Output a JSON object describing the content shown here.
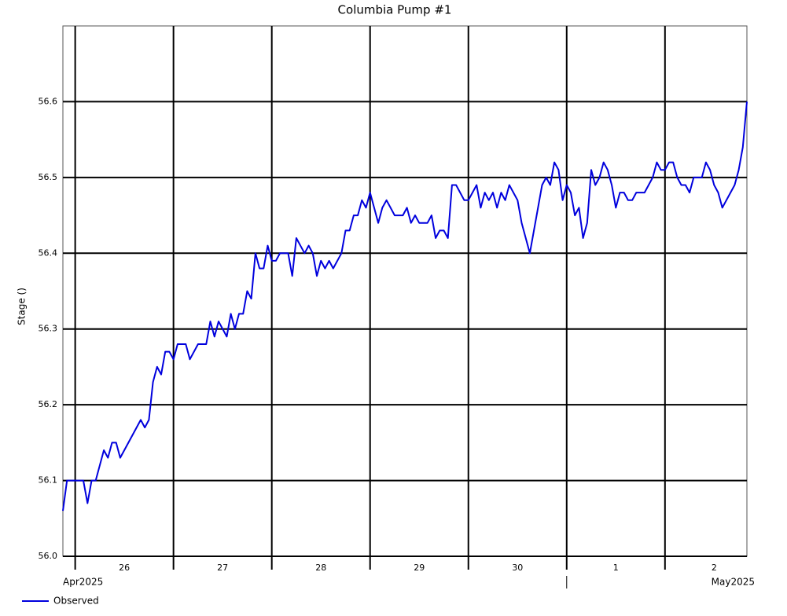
{
  "chart_data": {
    "type": "line",
    "title": "Columbia Pump #1",
    "y_label": "Stage ()",
    "x": [
      "2025-04-25T21:00",
      "2025-04-25T22:00",
      "2025-04-26T02:00",
      "2025-04-26T03:00",
      "2025-04-26T04:00",
      "2025-04-26T05:00",
      "2025-04-26T07:00",
      "2025-04-26T08:00",
      "2025-04-26T09:00",
      "2025-04-26T10:00",
      "2025-04-26T11:00",
      "2025-04-26T16:00",
      "2025-04-26T17:00",
      "2025-04-26T18:00",
      "2025-04-26T19:00",
      "2025-04-26T20:00",
      "2025-04-26T21:00",
      "2025-04-26T22:00",
      "2025-04-26T23:00",
      "2025-04-27T00:00",
      "2025-04-27T01:00",
      "2025-04-27T03:00",
      "2025-04-27T04:00",
      "2025-04-27T06:00",
      "2025-04-27T08:00",
      "2025-04-27T09:00",
      "2025-04-27T10:00",
      "2025-04-27T11:00",
      "2025-04-27T12:00",
      "2025-04-27T13:00",
      "2025-04-27T14:00",
      "2025-04-27T15:00",
      "2025-04-27T16:00",
      "2025-04-27T17:00",
      "2025-04-27T18:00",
      "2025-04-27T19:00",
      "2025-04-27T20:00",
      "2025-04-27T21:00",
      "2025-04-27T22:00",
      "2025-04-27T23:00",
      "2025-04-28T00:00",
      "2025-04-28T01:00",
      "2025-04-28T02:00",
      "2025-04-28T04:00",
      "2025-04-28T05:00",
      "2025-04-28T06:00",
      "2025-04-28T08:00",
      "2025-04-28T09:00",
      "2025-04-28T10:00",
      "2025-04-28T11:00",
      "2025-04-28T12:00",
      "2025-04-28T13:00",
      "2025-04-28T14:00",
      "2025-04-28T15:00",
      "2025-04-28T17:00",
      "2025-04-28T18:00",
      "2025-04-28T19:00",
      "2025-04-28T20:00",
      "2025-04-28T21:00",
      "2025-04-28T22:00",
      "2025-04-28T23:00",
      "2025-04-29T00:00",
      "2025-04-29T01:00",
      "2025-04-29T02:00",
      "2025-04-29T03:00",
      "2025-04-29T04:00",
      "2025-04-29T06:00",
      "2025-04-29T08:00",
      "2025-04-29T09:00",
      "2025-04-29T10:00",
      "2025-04-29T11:00",
      "2025-04-29T12:00",
      "2025-04-29T14:00",
      "2025-04-29T15:00",
      "2025-04-29T16:00",
      "2025-04-29T17:00",
      "2025-04-29T18:00",
      "2025-04-29T19:00",
      "2025-04-29T20:00",
      "2025-04-29T21:00",
      "2025-04-29T23:00",
      "2025-04-30T00:00",
      "2025-04-30T02:00",
      "2025-04-30T03:00",
      "2025-04-30T04:00",
      "2025-04-30T05:00",
      "2025-04-30T06:00",
      "2025-04-30T07:00",
      "2025-04-30T08:00",
      "2025-04-30T09:00",
      "2025-04-30T10:00",
      "2025-04-30T12:00",
      "2025-04-30T13:00",
      "2025-04-30T15:00",
      "2025-04-30T17:00",
      "2025-04-30T18:00",
      "2025-04-30T19:00",
      "2025-04-30T20:00",
      "2025-04-30T21:00",
      "2025-04-30T22:00",
      "2025-04-30T23:00",
      "2025-05-01T00:00",
      "2025-05-01T01:00",
      "2025-05-01T02:00",
      "2025-05-01T03:00",
      "2025-05-01T04:00",
      "2025-05-01T05:00",
      "2025-05-01T06:00",
      "2025-05-01T07:00",
      "2025-05-01T08:00",
      "2025-05-01T09:00",
      "2025-05-01T10:00",
      "2025-05-01T11:00",
      "2025-05-01T12:00",
      "2025-05-01T13:00",
      "2025-05-01T14:00",
      "2025-05-01T15:00",
      "2025-05-01T16:00",
      "2025-05-01T17:00",
      "2025-05-01T19:00",
      "2025-05-01T20:00",
      "2025-05-01T21:00",
      "2025-05-01T22:00",
      "2025-05-01T23:00",
      "2025-05-02T00:00",
      "2025-05-02T01:00",
      "2025-05-02T02:00",
      "2025-05-02T03:00",
      "2025-05-02T04:00",
      "2025-05-02T05:00",
      "2025-05-02T06:00",
      "2025-05-02T07:00",
      "2025-05-02T09:00",
      "2025-05-02T10:00",
      "2025-05-02T11:00",
      "2025-05-02T12:00",
      "2025-05-02T13:00",
      "2025-05-02T14:00",
      "2025-05-02T17:00",
      "2025-05-02T18:00",
      "2025-05-02T19:00",
      "2025-05-02T20:00"
    ],
    "series": [
      {
        "name": "Observed",
        "color": "#0000dd",
        "values": [
          56.06,
          56.1,
          56.1,
          56.07,
          56.1,
          56.1,
          56.14,
          56.13,
          56.15,
          56.15,
          56.13,
          56.18,
          56.17,
          56.18,
          56.23,
          56.25,
          56.24,
          56.27,
          56.27,
          56.26,
          56.28,
          56.28,
          56.26,
          56.28,
          56.28,
          56.31,
          56.29,
          56.31,
          56.3,
          56.29,
          56.32,
          56.3,
          56.32,
          56.32,
          56.35,
          56.34,
          56.4,
          56.38,
          56.38,
          56.41,
          56.39,
          56.39,
          56.4,
          56.4,
          56.37,
          56.42,
          56.4,
          56.41,
          56.4,
          56.37,
          56.39,
          56.38,
          56.39,
          56.38,
          56.4,
          56.43,
          56.43,
          56.45,
          56.45,
          56.47,
          56.46,
          56.48,
          56.46,
          56.44,
          56.46,
          56.47,
          56.45,
          56.45,
          56.46,
          56.44,
          56.45,
          56.44,
          56.44,
          56.45,
          56.42,
          56.43,
          56.43,
          56.42,
          56.49,
          56.49,
          56.47,
          56.47,
          56.49,
          56.46,
          56.48,
          56.47,
          56.48,
          56.46,
          56.48,
          56.47,
          56.49,
          56.47,
          56.44,
          56.4,
          56.46,
          56.49,
          56.5,
          56.49,
          56.52,
          56.51,
          56.47,
          56.49,
          56.48,
          56.45,
          56.46,
          56.42,
          56.44,
          56.51,
          56.49,
          56.5,
          56.52,
          56.51,
          56.49,
          56.46,
          56.48,
          56.48,
          56.47,
          56.47,
          56.48,
          56.48,
          56.49,
          56.5,
          56.52,
          56.51,
          56.51,
          56.52,
          56.52,
          56.5,
          56.49,
          56.49,
          56.48,
          56.5,
          56.5,
          56.52,
          56.51,
          56.49,
          56.48,
          56.46,
          56.49,
          56.51,
          56.54,
          56.6
        ]
      }
    ],
    "xlim": [
      "2025-04-25T21:00",
      "2025-05-02T20:00"
    ],
    "xticks": [
      {
        "value": "2025-04-26T00:00",
        "label": "26"
      },
      {
        "value": "2025-04-27T00:00",
        "label": "27"
      },
      {
        "value": "2025-04-28T00:00",
        "label": "28"
      },
      {
        "value": "2025-04-29T00:00",
        "label": "29"
      },
      {
        "value": "2025-04-30T00:00",
        "label": "30"
      },
      {
        "value": "2025-05-01T00:00",
        "label": "1"
      },
      {
        "value": "2025-05-02T00:00",
        "label": "2"
      }
    ],
    "month_ticks": [
      {
        "value": "2025-05-01T00:00",
        "label": "May2025"
      }
    ],
    "start_month_label": "Apr2025",
    "ylim": [
      56.0,
      56.7
    ],
    "yticks": [
      {
        "value": 56.0,
        "label": "56.0"
      },
      56.1,
      56.2,
      56.3,
      56.4,
      56.5,
      56.6
    ],
    "grid": true,
    "legend": "bottom-left"
  }
}
